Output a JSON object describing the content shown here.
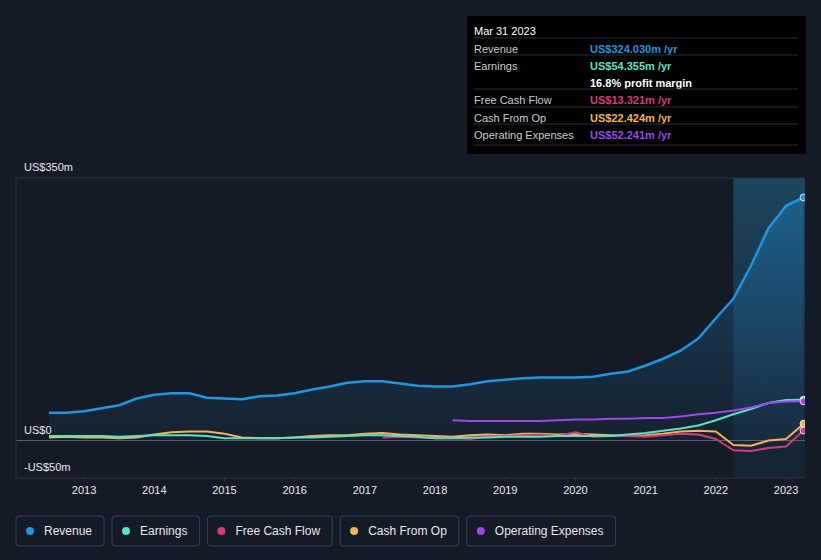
{
  "chart_data": {
    "type": "line",
    "x": [
      2012.5,
      2012.75,
      2013,
      2013.25,
      2013.5,
      2013.75,
      2014,
      2014.25,
      2014.5,
      2014.75,
      2015,
      2015.25,
      2015.5,
      2015.75,
      2016,
      2016.25,
      2016.5,
      2016.75,
      2017,
      2017.25,
      2017.5,
      2017.75,
      2018,
      2018.25,
      2018.5,
      2018.75,
      2019,
      2019.25,
      2019.5,
      2019.75,
      2020,
      2020.25,
      2020.5,
      2020.75,
      2021,
      2021.25,
      2021.5,
      2021.75,
      2022,
      2022.25,
      2022.5,
      2022.75,
      2023,
      2023.25
    ],
    "xlim": [
      2012.03,
      2023.27
    ],
    "xticks": [
      2013,
      2014,
      2015,
      2016,
      2017,
      2018,
      2019,
      2020,
      2021,
      2022,
      2023
    ],
    "ylim": [
      -50,
      350
    ],
    "yticks": [
      {
        "value": -50,
        "label": "-US$50m"
      },
      {
        "value": 0,
        "label": "US$0"
      },
      {
        "value": 350,
        "label": "US$350m"
      }
    ],
    "grid": true,
    "legend": "bottom",
    "series": [
      {
        "name": "Revenue",
        "color": "#2394df",
        "values": [
          37,
          37,
          39,
          43,
          47,
          56,
          61,
          63,
          63,
          57,
          56,
          55,
          59,
          60,
          63,
          68,
          72,
          77,
          79,
          79,
          76,
          73,
          72,
          72,
          75,
          79,
          81,
          83,
          84,
          84,
          84,
          85,
          89,
          92,
          100,
          109,
          120,
          136,
          163,
          189,
          233,
          283,
          313,
          324.03
        ]
      },
      {
        "name": "Earnings",
        "color": "#5de1c6",
        "values": [
          6,
          6,
          6,
          6,
          5,
          6,
          7,
          7,
          7,
          6,
          3,
          3,
          3,
          3,
          4,
          4,
          5,
          6,
          7,
          7,
          6,
          5,
          3,
          3,
          4,
          4,
          5,
          5,
          5,
          6,
          6,
          6,
          6,
          8,
          10,
          13,
          16,
          20,
          27,
          35,
          42,
          50,
          54,
          54.355
        ]
      },
      {
        "name": "Free Cash Flow",
        "color": "#d23c7a",
        "values": [
          null,
          null,
          null,
          null,
          null,
          null,
          null,
          null,
          null,
          null,
          null,
          null,
          null,
          null,
          null,
          null,
          null,
          null,
          null,
          4,
          5,
          4,
          3,
          3,
          2,
          5,
          6,
          7,
          8,
          6,
          11,
          5,
          6,
          6,
          5,
          7,
          9,
          8,
          2,
          -13,
          -14,
          -10,
          -8,
          13.321
        ]
      },
      {
        "name": "Cash From Op",
        "color": "#f0b35a",
        "values": [
          4,
          5,
          4,
          4,
          3,
          4,
          8,
          11,
          12,
          12,
          9,
          4,
          3,
          3,
          4,
          6,
          7,
          7,
          9,
          10,
          8,
          7,
          6,
          5,
          7,
          8,
          7,
          9,
          9,
          8,
          9,
          8,
          7,
          6,
          7,
          9,
          12,
          13,
          12,
          -6,
          -7,
          0,
          2,
          22.424
        ]
      },
      {
        "name": "Operating Expenses",
        "color": "#9c47e8",
        "values": [
          null,
          null,
          null,
          null,
          null,
          null,
          null,
          null,
          null,
          null,
          null,
          null,
          null,
          null,
          null,
          null,
          null,
          null,
          null,
          null,
          null,
          null,
          null,
          27,
          26,
          26,
          26,
          26,
          26,
          27,
          28,
          28,
          29,
          29,
          30,
          30,
          32,
          35,
          37,
          40,
          44,
          50,
          52,
          52.241
        ]
      }
    ],
    "annotations": {
      "date": "Mar 31 2023",
      "rows": [
        {
          "label": "Revenue",
          "value": "US$324.030m /yr",
          "color": "#2394df"
        },
        {
          "label": "Earnings",
          "value": "US$54.355m /yr",
          "color": "#5de1c6"
        },
        {
          "label": null,
          "value": "16.8% profit margin",
          "color": "#ffffff"
        },
        {
          "label": "Free Cash Flow",
          "value": "US$13.321m /yr",
          "color": "#d23c7a"
        },
        {
          "label": "Cash From Op",
          "value": "US$22.424m /yr",
          "color": "#f0b35a"
        },
        {
          "label": "Operating Expenses",
          "value": "US$52.241m /yr",
          "color": "#9c47e8"
        }
      ]
    }
  }
}
